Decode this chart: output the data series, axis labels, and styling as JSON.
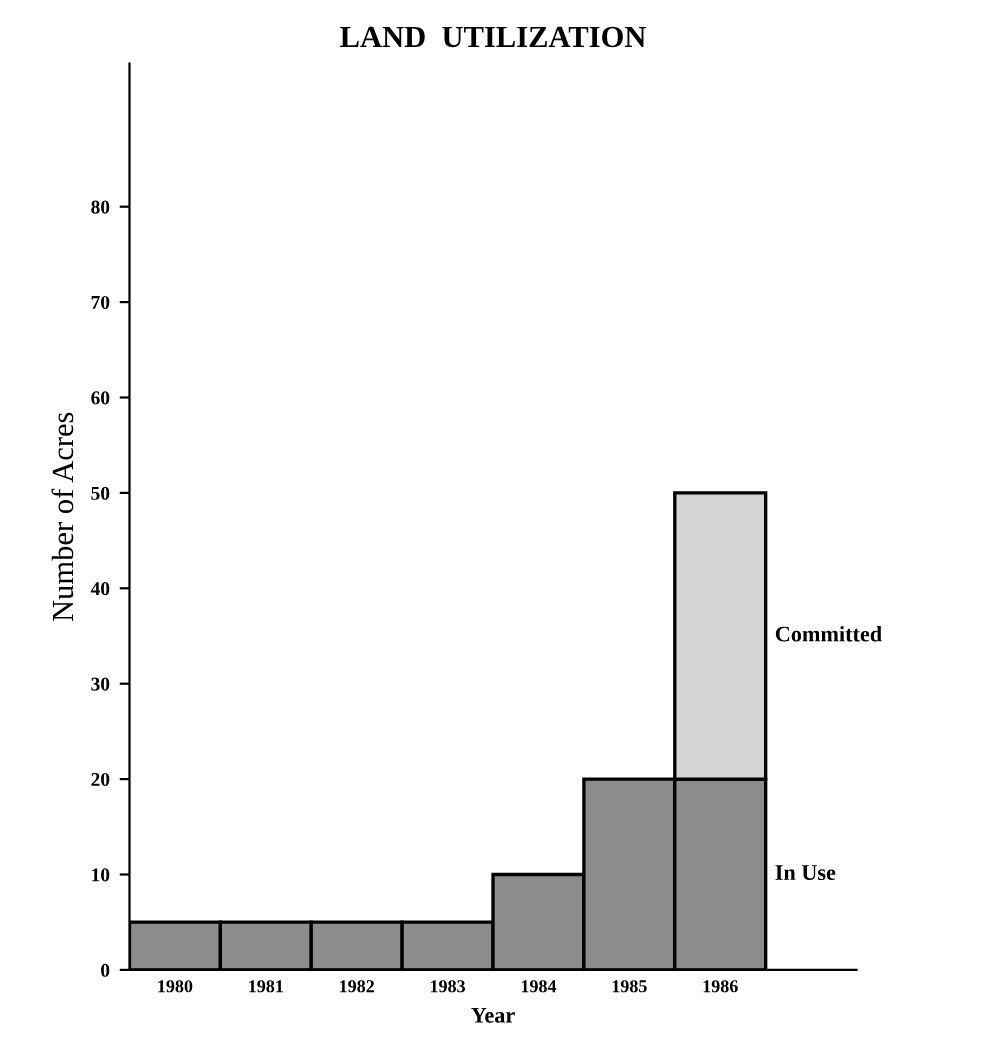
{
  "chart_data": {
    "type": "bar",
    "title": "LAND  UTILIZATION",
    "xlabel": "Year",
    "ylabel": "Number of Acres",
    "categories": [
      "1980",
      "1981",
      "1982",
      "1983",
      "1984",
      "1985",
      "1986"
    ],
    "stacked": true,
    "series": [
      {
        "name": "In Use",
        "color": "#8c8c8c",
        "values": [
          5,
          5,
          5,
          5,
          10,
          20,
          20
        ]
      },
      {
        "name": "Committed",
        "color": "#d4d4d4",
        "values": [
          null,
          null,
          null,
          null,
          null,
          null,
          30
        ]
      }
    ],
    "ylim": [
      0,
      95
    ],
    "yticks": [
      0,
      10,
      20,
      30,
      40,
      50,
      60,
      70,
      80
    ],
    "grid": false,
    "legend": false
  }
}
